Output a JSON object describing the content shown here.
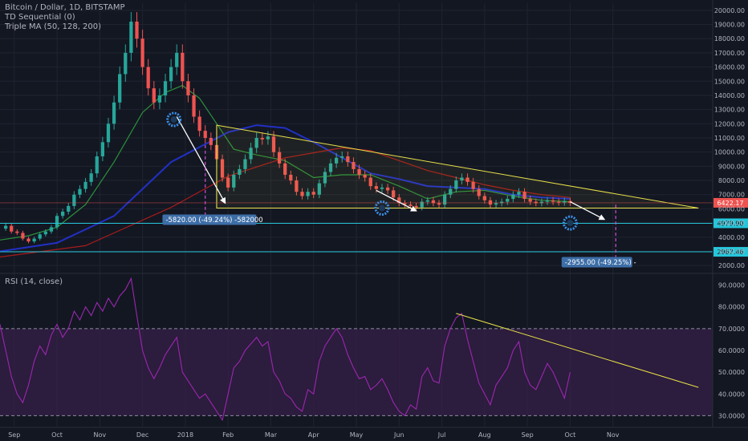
{
  "legend": {
    "symbol": "Bitcoin / Dollar, 1D, BITSTAMP",
    "indicator1": "TD Sequential (0)",
    "indicator2": "Triple MA (50, 128, 200)",
    "rsi": "RSI (14, close)"
  },
  "colors": {
    "background": "#131722",
    "grid": "#1f2430",
    "axis_text": "#b2b5be",
    "up_candle": "#26a69a",
    "down_candle": "#ef5350",
    "ma50": "#2e9f3e",
    "ma128": "#2433d6",
    "ma200": "#b71c1c",
    "trendline": "#e8e04a",
    "arrow": "#ffffff",
    "projection": "#d24fd0",
    "cyan_level": "#26c6da",
    "rsi_line": "#9c27b0",
    "rsi_band": "#3a1f4d"
  },
  "chart_data": [
    {
      "type": "candlestick",
      "x_axis": {
        "tick_labels": [
          "Sep",
          "Oct",
          "Nov",
          "Dec",
          "2018",
          "Feb",
          "Mar",
          "Apr",
          "May",
          "Jun",
          "Jul",
          "Aug",
          "Sep",
          "Oct",
          "Nov"
        ]
      },
      "y_axis": {
        "scale": "linear",
        "range": [
          1500,
          20500
        ],
        "tick_values": [
          2000,
          3000,
          4000,
          5000,
          6000,
          7000,
          8000,
          9000,
          10000,
          11000,
          12000,
          13000,
          14000,
          15000,
          16000,
          17000,
          18000,
          19000,
          20000
        ],
        "tick_labels": [
          "2000.00",
          "3000.00",
          "4000.00",
          "5000.00",
          "6000.00",
          "7000.00",
          "8000.00",
          "9000.00",
          "10000.00",
          "11000.00",
          "12000.00",
          "13000.00",
          "14000.00",
          "15000.00",
          "16000.00",
          "17000.00",
          "18000.00",
          "19000.00",
          "20000.00"
        ]
      },
      "price_series_approx": [
        [
          0,
          4600
        ],
        [
          2,
          4800
        ],
        [
          4,
          4400
        ],
        [
          6,
          4300
        ],
        [
          8,
          3900
        ],
        [
          10,
          3700
        ],
        [
          12,
          3900
        ],
        [
          14,
          4200
        ],
        [
          16,
          4400
        ],
        [
          18,
          4700
        ],
        [
          20,
          5500
        ],
        [
          22,
          5800
        ],
        [
          24,
          6200
        ],
        [
          26,
          7000
        ],
        [
          28,
          7400
        ],
        [
          30,
          7900
        ],
        [
          32,
          8500
        ],
        [
          34,
          9700
        ],
        [
          36,
          10700
        ],
        [
          38,
          12000
        ],
        [
          40,
          13500
        ],
        [
          42,
          15500
        ],
        [
          44,
          17000
        ],
        [
          46,
          19200
        ],
        [
          48,
          18000
        ],
        [
          50,
          16000
        ],
        [
          52,
          14500
        ],
        [
          54,
          13500
        ],
        [
          56,
          14000
        ],
        [
          58,
          15000
        ],
        [
          60,
          16000
        ],
        [
          62,
          17000
        ],
        [
          64,
          15000
        ],
        [
          66,
          14000
        ],
        [
          68,
          12500
        ],
        [
          70,
          11500
        ],
        [
          72,
          11000
        ],
        [
          74,
          10500
        ],
        [
          76,
          9500
        ],
        [
          78,
          8200
        ],
        [
          80,
          7500
        ],
        [
          82,
          8400
        ],
        [
          84,
          8800
        ],
        [
          86,
          9500
        ],
        [
          88,
          10300
        ],
        [
          90,
          11000
        ],
        [
          92,
          10900
        ],
        [
          94,
          11100
        ],
        [
          96,
          10000
        ],
        [
          98,
          9200
        ],
        [
          100,
          8400
        ],
        [
          102,
          8000
        ],
        [
          104,
          7200
        ],
        [
          106,
          6900
        ],
        [
          108,
          7200
        ],
        [
          110,
          7000
        ],
        [
          112,
          7800
        ],
        [
          114,
          8600
        ],
        [
          116,
          9200
        ],
        [
          118,
          9600
        ],
        [
          120,
          9700
        ],
        [
          122,
          9300
        ],
        [
          124,
          8800
        ],
        [
          126,
          8400
        ],
        [
          128,
          8200
        ],
        [
          130,
          7600
        ],
        [
          132,
          7400
        ],
        [
          134,
          7500
        ],
        [
          136,
          7300
        ],
        [
          138,
          6800
        ],
        [
          140,
          6400
        ],
        [
          142,
          6300
        ],
        [
          144,
          6200
        ],
        [
          146,
          6100
        ],
        [
          148,
          6500
        ],
        [
          150,
          6600
        ],
        [
          152,
          6400
        ],
        [
          154,
          6300
        ],
        [
          156,
          7000
        ],
        [
          158,
          7400
        ],
        [
          160,
          8000
        ],
        [
          162,
          8200
        ],
        [
          164,
          7900
        ],
        [
          166,
          7400
        ],
        [
          168,
          6900
        ],
        [
          170,
          6600
        ],
        [
          172,
          6300
        ],
        [
          174,
          6400
        ],
        [
          176,
          6500
        ],
        [
          178,
          6700
        ],
        [
          180,
          7000
        ],
        [
          182,
          7200
        ],
        [
          184,
          6700
        ],
        [
          186,
          6500
        ],
        [
          188,
          6400
        ],
        [
          190,
          6500
        ],
        [
          192,
          6600
        ],
        [
          194,
          6500
        ],
        [
          196,
          6450
        ],
        [
          198,
          6550
        ],
        [
          200,
          6420
        ]
      ],
      "moving_averages": [
        {
          "name": "MA 50",
          "values_approx": [
            [
              0,
              3800
            ],
            [
              10,
              4100
            ],
            [
              20,
              4700
            ],
            [
              30,
              6300
            ],
            [
              40,
              9300
            ],
            [
              50,
              12800
            ],
            [
              58,
              14200
            ],
            [
              64,
              14700
            ],
            [
              70,
              13800
            ],
            [
              76,
              12000
            ],
            [
              82,
              10200
            ],
            [
              90,
              9800
            ],
            [
              100,
              9400
            ],
            [
              110,
              8200
            ],
            [
              120,
              8400
            ],
            [
              130,
              8400
            ],
            [
              140,
              7600
            ],
            [
              150,
              6700
            ],
            [
              160,
              7200
            ],
            [
              170,
              7300
            ],
            [
              180,
              6900
            ],
            [
              190,
              6600
            ],
            [
              200,
              6500
            ]
          ]
        },
        {
          "name": "MA 128",
          "values_approx": [
            [
              0,
              3000
            ],
            [
              20,
              3600
            ],
            [
              40,
              5500
            ],
            [
              60,
              9300
            ],
            [
              80,
              11400
            ],
            [
              90,
              11900
            ],
            [
              100,
              11700
            ],
            [
              110,
              10700
            ],
            [
              120,
              9600
            ],
            [
              130,
              8500
            ],
            [
              140,
              8100
            ],
            [
              150,
              7600
            ],
            [
              160,
              7500
            ],
            [
              170,
              7400
            ],
            [
              180,
              7000
            ],
            [
              190,
              6800
            ],
            [
              200,
              6700
            ]
          ]
        },
        {
          "name": "MA 200",
          "values_approx": [
            [
              0,
              2600
            ],
            [
              30,
              3400
            ],
            [
              60,
              6100
            ],
            [
              80,
              8300
            ],
            [
              100,
              9600
            ],
            [
              120,
              10300
            ],
            [
              130,
              10100
            ],
            [
              140,
              9400
            ],
            [
              150,
              8700
            ],
            [
              160,
              8200
            ],
            [
              170,
              7700
            ],
            [
              180,
              7300
            ],
            [
              190,
              7000
            ],
            [
              200,
              6800
            ]
          ]
        }
      ],
      "annotations": {
        "current_price_label": "6422.17",
        "level_1_label": "4979.90",
        "level_2_label": "2967.46",
        "measure_1_label": "-5820.00 (-49.24%) -582000",
        "measure_2_label": "-2955.00 (-49.25%) -"
      }
    },
    {
      "type": "line",
      "name": "RSI (14, close)",
      "y_axis": {
        "range": [
          25,
          95
        ],
        "tick_values": [
          30,
          40,
          50,
          60,
          70,
          80,
          90
        ],
        "tick_labels": [
          "30.0000",
          "40.0000",
          "50.0000",
          "60.0000",
          "70.0000",
          "80.0000",
          "90.0000"
        ],
        "band": [
          30,
          70
        ]
      },
      "values_approx": [
        [
          0,
          72
        ],
        [
          2,
          60
        ],
        [
          4,
          48
        ],
        [
          6,
          40
        ],
        [
          8,
          36
        ],
        [
          10,
          44
        ],
        [
          12,
          55
        ],
        [
          14,
          62
        ],
        [
          16,
          58
        ],
        [
          18,
          67
        ],
        [
          20,
          72
        ],
        [
          22,
          66
        ],
        [
          24,
          70
        ],
        [
          26,
          78
        ],
        [
          28,
          74
        ],
        [
          30,
          80
        ],
        [
          32,
          76
        ],
        [
          34,
          82
        ],
        [
          36,
          78
        ],
        [
          38,
          84
        ],
        [
          40,
          80
        ],
        [
          42,
          85
        ],
        [
          44,
          88
        ],
        [
          46,
          93
        ],
        [
          48,
          76
        ],
        [
          50,
          60
        ],
        [
          52,
          52
        ],
        [
          54,
          47
        ],
        [
          56,
          52
        ],
        [
          58,
          58
        ],
        [
          60,
          62
        ],
        [
          62,
          66
        ],
        [
          64,
          50
        ],
        [
          66,
          46
        ],
        [
          68,
          42
        ],
        [
          70,
          38
        ],
        [
          72,
          40
        ],
        [
          74,
          36
        ],
        [
          76,
          32
        ],
        [
          78,
          28
        ],
        [
          80,
          40
        ],
        [
          82,
          52
        ],
        [
          84,
          55
        ],
        [
          86,
          60
        ],
        [
          88,
          63
        ],
        [
          90,
          66
        ],
        [
          92,
          62
        ],
        [
          94,
          64
        ],
        [
          96,
          50
        ],
        [
          98,
          46
        ],
        [
          100,
          40
        ],
        [
          102,
          38
        ],
        [
          104,
          34
        ],
        [
          106,
          32
        ],
        [
          108,
          42
        ],
        [
          110,
          40
        ],
        [
          112,
          55
        ],
        [
          114,
          62
        ],
        [
          116,
          66
        ],
        [
          118,
          70
        ],
        [
          120,
          66
        ],
        [
          122,
          58
        ],
        [
          124,
          52
        ],
        [
          126,
          47
        ],
        [
          128,
          48
        ],
        [
          130,
          42
        ],
        [
          132,
          44
        ],
        [
          134,
          47
        ],
        [
          136,
          42
        ],
        [
          138,
          36
        ],
        [
          140,
          32
        ],
        [
          142,
          30
        ],
        [
          144,
          35
        ],
        [
          146,
          33
        ],
        [
          148,
          48
        ],
        [
          150,
          52
        ],
        [
          152,
          46
        ],
        [
          154,
          45
        ],
        [
          156,
          62
        ],
        [
          158,
          70
        ],
        [
          160,
          75
        ],
        [
          162,
          77
        ],
        [
          164,
          65
        ],
        [
          166,
          55
        ],
        [
          168,
          45
        ],
        [
          170,
          40
        ],
        [
          172,
          35
        ],
        [
          174,
          44
        ],
        [
          176,
          48
        ],
        [
          178,
          52
        ],
        [
          180,
          60
        ],
        [
          182,
          64
        ],
        [
          184,
          50
        ],
        [
          186,
          44
        ],
        [
          188,
          42
        ],
        [
          190,
          48
        ],
        [
          192,
          54
        ],
        [
          194,
          50
        ],
        [
          196,
          44
        ],
        [
          198,
          38
        ],
        [
          200,
          50
        ]
      ]
    }
  ]
}
